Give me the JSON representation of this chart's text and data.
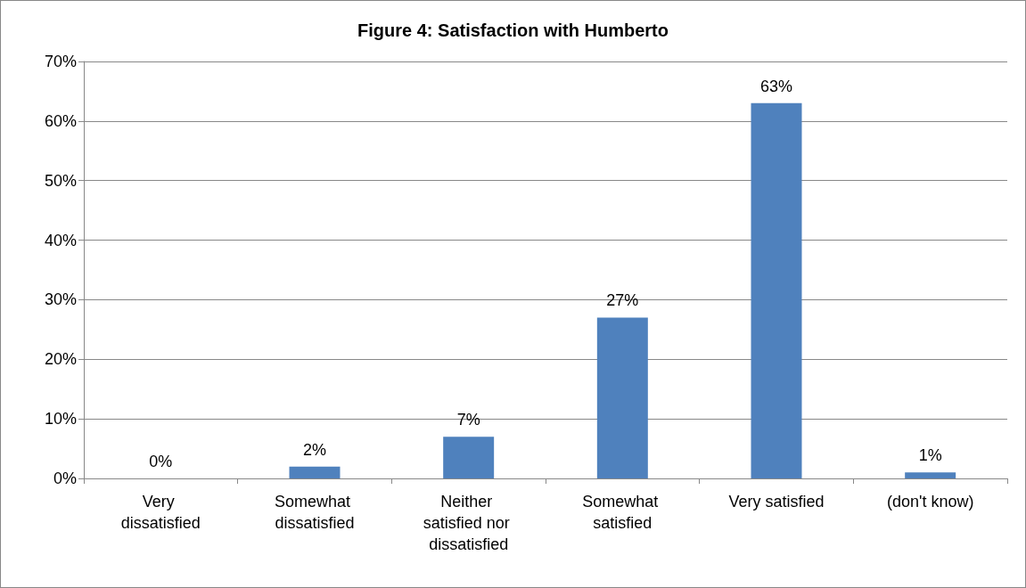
{
  "chart_data": {
    "type": "bar",
    "title": "Figure 4: Satisfaction with Humberto",
    "categories": [
      "Very dissatisfied",
      "Somewhat dissatisfied",
      "Neither satisfied nor dissatisfied",
      "Somewhat satisfied",
      "Very satisfied",
      "(don't know)"
    ],
    "values": [
      0,
      2,
      7,
      27,
      63,
      1
    ],
    "value_labels": [
      "0%",
      "2%",
      "7%",
      "27%",
      "63%",
      "1%"
    ],
    "color": "#4f81bd",
    "ylim": [
      0,
      70
    ],
    "yticks": [
      {
        "value": 0,
        "label": "0%"
      },
      {
        "value": 10,
        "label": "10%"
      },
      {
        "value": 20,
        "label": "20%"
      },
      {
        "value": 30,
        "label": "30%"
      },
      {
        "value": 40,
        "label": "40%"
      },
      {
        "value": 50,
        "label": "50%"
      },
      {
        "value": 60,
        "label": "60%"
      },
      {
        "value": 70,
        "label": "70%"
      }
    ],
    "grid": "y"
  }
}
